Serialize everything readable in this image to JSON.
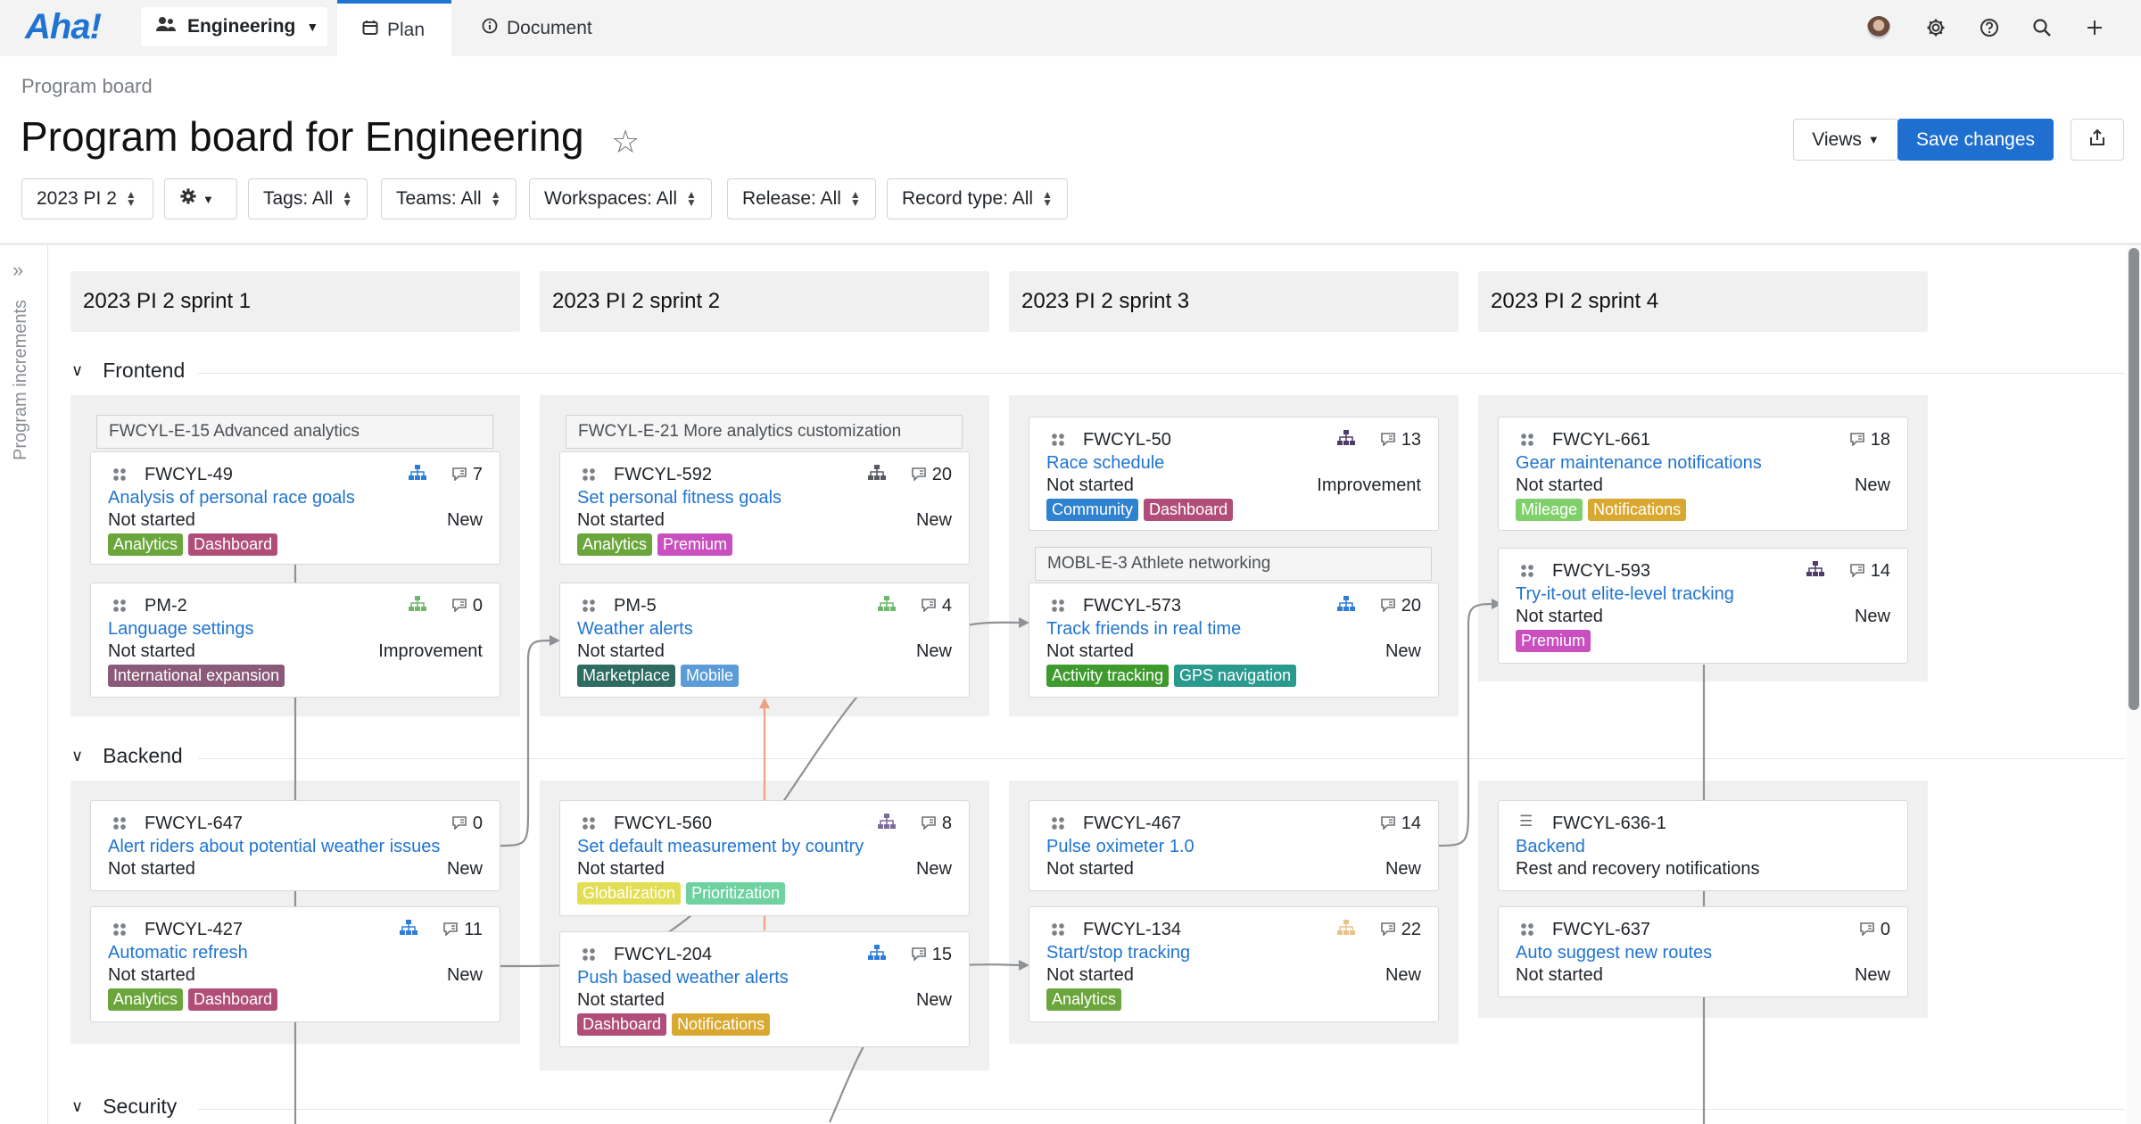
{
  "app": {
    "logo": "Aha!",
    "workspace": "Engineering",
    "tabs": [
      {
        "label": "Plan",
        "icon": "calendar-icon"
      },
      {
        "label": "Document",
        "icon": "info-icon"
      }
    ],
    "icons": [
      "avatar",
      "gear-icon",
      "help-icon",
      "search-icon",
      "plus-icon"
    ]
  },
  "header": {
    "breadcrumb": "Program board",
    "title": "Program board for Engineering",
    "views_label": "Views",
    "save_label": "Save changes"
  },
  "filters": {
    "increment": "2023 PI 2",
    "tags": "Tags: All",
    "teams": "Teams: All",
    "workspaces": "Workspaces: All",
    "release": "Release: All",
    "record_type": "Record type: All"
  },
  "rail": {
    "label": "Program increments"
  },
  "sprints": [
    "2023 PI 2 sprint 1",
    "2023 PI 2 sprint 2",
    "2023 PI 2 sprint 3",
    "2023 PI 2 sprint 4"
  ],
  "sections": [
    "Frontend",
    "Backend",
    "Security"
  ],
  "epics": {
    "e15": "FWCYL-E-15 Advanced analytics",
    "e21": "FWCYL-E-21 More analytics customization",
    "e3": "MOBL-E-3 Athlete networking"
  },
  "colors": {
    "accent": "#1f74d1",
    "Analytics": "#6aa63b",
    "Dashboard": "#b04e79",
    "Premium": "#c94fbf",
    "International expansion": "#8a5a78",
    "Marketplace": "#2e6b63",
    "Mobile": "#5b9bd8",
    "Community": "#2f82d0",
    "Activity tracking": "#3f9a2e",
    "GPS navigation": "#2a9a8f",
    "Mileage": "#7fd06a",
    "Notifications": "#d9a830",
    "Globalization": "#e2de54",
    "Prioritization": "#6ed2a0"
  },
  "cards": {
    "c49": {
      "id": "FWCYL-49",
      "name": "Analysis of personal race goals",
      "status": "Not started",
      "kind": "New",
      "comments": "7",
      "tags": [
        "Analytics",
        "Dashboard"
      ]
    },
    "pm2": {
      "id": "PM-2",
      "name": "Language settings",
      "status": "Not started",
      "kind": "Improvement",
      "comments": "0",
      "tags": [
        "International expansion"
      ]
    },
    "c592": {
      "id": "FWCYL-592",
      "name": "Set personal fitness goals",
      "status": "Not started",
      "kind": "New",
      "comments": "20",
      "tags": [
        "Analytics",
        "Premium"
      ]
    },
    "pm5": {
      "id": "PM-5",
      "name": "Weather alerts",
      "status": "Not started",
      "kind": "New",
      "comments": "4",
      "tags": [
        "Marketplace",
        "Mobile"
      ]
    },
    "c50": {
      "id": "FWCYL-50",
      "name": "Race schedule",
      "status": "Not started",
      "kind": "Improvement",
      "comments": "13",
      "tags": [
        "Community",
        "Dashboard"
      ]
    },
    "c573": {
      "id": "FWCYL-573",
      "name": "Track friends in real time",
      "status": "Not started",
      "kind": "New",
      "comments": "20",
      "tags": [
        "Activity tracking",
        "GPS navigation"
      ]
    },
    "c661": {
      "id": "FWCYL-661",
      "name": "Gear maintenance notifications",
      "status": "Not started",
      "kind": "New",
      "comments": "18",
      "tags": [
        "Mileage",
        "Notifications"
      ]
    },
    "c593": {
      "id": "FWCYL-593",
      "name": "Try-it-out elite-level tracking",
      "status": "Not started",
      "kind": "New",
      "comments": "14",
      "tags": [
        "Premium"
      ]
    },
    "c647": {
      "id": "FWCYL-647",
      "name": "Alert riders about potential weather issues",
      "status": "Not started",
      "kind": "New",
      "comments": "0",
      "tags": []
    },
    "c427": {
      "id": "FWCYL-427",
      "name": "Automatic refresh",
      "status": "Not started",
      "kind": "New",
      "comments": "11",
      "tags": [
        "Analytics",
        "Dashboard"
      ]
    },
    "c560": {
      "id": "FWCYL-560",
      "name": "Set default measurement by country",
      "status": "Not started",
      "kind": "New",
      "comments": "8",
      "tags": [
        "Globalization",
        "Prioritization"
      ]
    },
    "c204": {
      "id": "FWCYL-204",
      "name": "Push based weather alerts",
      "status": "Not started",
      "kind": "New",
      "comments": "15",
      "tags": [
        "Dashboard",
        "Notifications"
      ]
    },
    "c467": {
      "id": "FWCYL-467",
      "name": "Pulse oximeter 1.0",
      "status": "Not started",
      "kind": "New",
      "comments": "14",
      "tags": []
    },
    "c134": {
      "id": "FWCYL-134",
      "name": "Start/stop tracking",
      "status": "Not started",
      "kind": "New",
      "comments": "22",
      "tags": [
        "Analytics"
      ]
    },
    "c636": {
      "id": "FWCYL-636-1",
      "name": "Backend",
      "status": "Rest and recovery notifications",
      "kind": "",
      "comments": "",
      "tags": []
    },
    "c637": {
      "id": "FWCYL-637",
      "name": "Auto suggest new routes",
      "status": "Not started",
      "kind": "New",
      "comments": "0",
      "tags": []
    }
  }
}
